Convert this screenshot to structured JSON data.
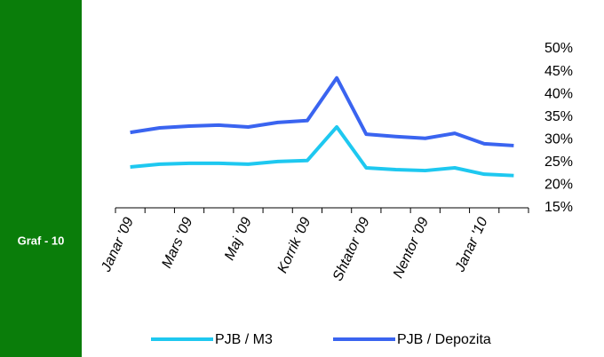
{
  "figure_label": "Graf - 10",
  "chart_data": {
    "type": "line",
    "categories": [
      "Janar '09",
      null,
      "Mars '09",
      null,
      "Maj '09",
      null,
      "Korrik '09",
      null,
      "Shtator '09",
      null,
      "Nentor '09",
      null,
      "Janar '10",
      null
    ],
    "series": [
      {
        "name": "PJB / M3",
        "color": "#1ec8f0",
        "values": [
          24.0,
          24.6,
          24.8,
          24.8,
          24.6,
          25.2,
          25.4,
          32.8,
          23.8,
          23.4,
          23.2,
          23.8,
          22.4,
          22.1
        ]
      },
      {
        "name": "PJB / Depozita",
        "color": "#3a64f0",
        "values": [
          31.6,
          32.6,
          33.0,
          33.2,
          32.8,
          33.8,
          34.2,
          43.6,
          31.2,
          30.7,
          30.3,
          31.4,
          29.1,
          28.7
        ]
      }
    ],
    "ylim": [
      15,
      50
    ],
    "yticks": [
      {
        "value": 15,
        "label": "15%"
      },
      {
        "value": 20,
        "label": "20%"
      },
      {
        "value": 25,
        "label": "25%"
      },
      {
        "value": 30,
        "label": "30%"
      },
      {
        "value": 35,
        "label": "35%"
      },
      {
        "value": 40,
        "label": "40%"
      },
      {
        "value": 45,
        "label": "45%"
      },
      {
        "value": 50,
        "label": "50%"
      }
    ],
    "grid": false,
    "legend": "bottom"
  }
}
